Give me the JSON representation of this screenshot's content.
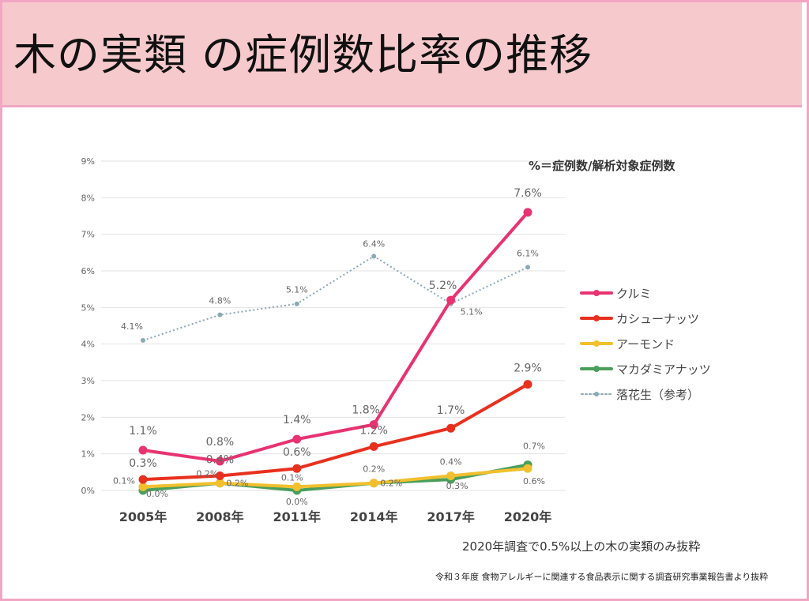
{
  "title": "木の実類 の症例数比率の推移",
  "chart_data": {
    "type": "line",
    "title": "",
    "formula_note": "%＝症例数/解析対象症例数",
    "categories": [
      "2005年",
      "2008年",
      "2011年",
      "2014年",
      "2017年",
      "2020年"
    ],
    "ylim": [
      0,
      9
    ],
    "yticks": [
      "0%",
      "1%",
      "2%",
      "3%",
      "4%",
      "5%",
      "6%",
      "7%",
      "8%",
      "9%"
    ],
    "grid": true,
    "legend_position": "right",
    "series": [
      {
        "name": "クルミ",
        "color": "#e8336f",
        "values": [
          1.1,
          0.8,
          1.4,
          1.8,
          5.2,
          7.6
        ],
        "labels": [
          "1.1%",
          "0.8%",
          "1.4%",
          "1.8%",
          "5.2%",
          "7.6%"
        ],
        "style": "solid"
      },
      {
        "name": "カシューナッツ",
        "color": "#e8301e",
        "values": [
          0.3,
          0.4,
          0.6,
          1.2,
          1.7,
          2.9
        ],
        "labels": [
          "0.3%",
          "0.4%",
          "0.6%",
          "1.2%",
          "1.7%",
          "2.9%"
        ],
        "style": "solid"
      },
      {
        "name": "アーモンド",
        "color": "#f2c02e",
        "values": [
          0.1,
          0.2,
          0.1,
          0.2,
          0.4,
          0.6
        ],
        "labels": [
          "0.1%",
          "0.2%",
          "0.1%",
          "0.2%",
          "0.4%",
          "0.6%"
        ],
        "style": "solid"
      },
      {
        "name": "マカダミアナッツ",
        "color": "#4a9e5c",
        "values": [
          0.0,
          0.2,
          0.0,
          0.2,
          0.3,
          0.7
        ],
        "labels": [
          "0.0%",
          "0.2%",
          "0.0%",
          "0.2%",
          "0.3%",
          "0.7%"
        ],
        "style": "solid"
      },
      {
        "name": "落花生（参考）",
        "color": "#8aa8b8",
        "values": [
          4.1,
          4.8,
          5.1,
          6.4,
          5.1,
          6.1
        ],
        "labels": [
          "4.1%",
          "4.8%",
          "5.1%",
          "6.4%",
          "5.1%",
          "6.1%"
        ],
        "style": "dotted"
      }
    ]
  },
  "subnote": "2020年調査で0.5%以上の木の実類のみ抜粋",
  "source": "令和３年度 食物アレルギーに関連する食品表示に関する調査研究事業報告書より抜粋"
}
